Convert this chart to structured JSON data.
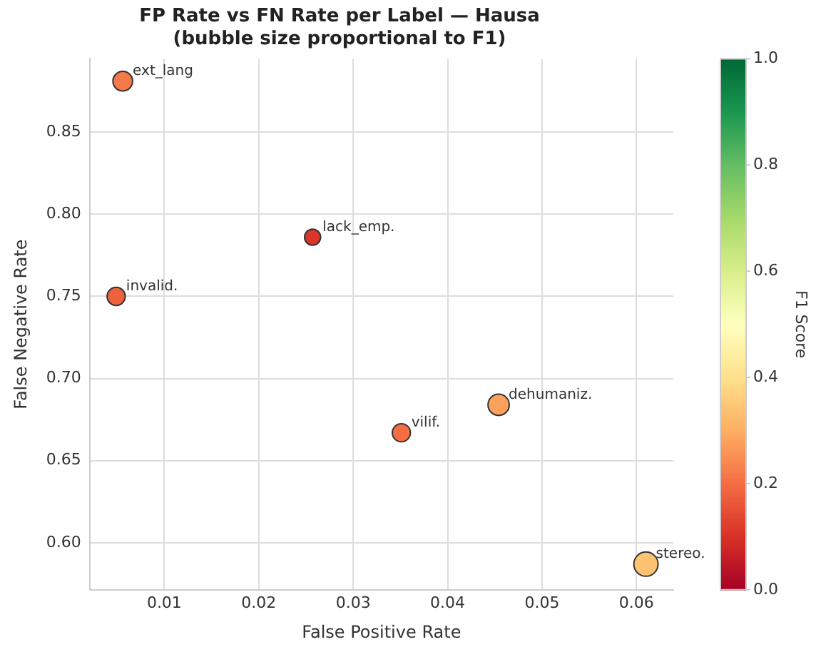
{
  "chart_data": {
    "type": "bubble",
    "title": "FP Rate vs FN Rate per Label — Hausa",
    "subtitle": "(bubble size proportional to F1)",
    "xlabel": "False Positive Rate",
    "ylabel": "False Negative Rate",
    "clabel": "F1 Score",
    "x": [
      0.0056,
      0.0257,
      0.0049,
      0.0454,
      0.0351,
      0.061
    ],
    "values": [
      0.881,
      0.786,
      0.75,
      0.684,
      0.667,
      0.587
    ],
    "sizes": [
      0.66,
      0.44,
      0.56,
      0.77,
      0.56,
      1
    ],
    "cvalues": [
      0.22,
      0.11,
      0.18,
      0.28,
      0.2,
      0.34
    ],
    "annotations": [
      {
        "text": "ext_lang",
        "x": 0.0056,
        "y": 0.881
      },
      {
        "text": "lack_emp.",
        "x": 0.0257,
        "y": 0.786
      },
      {
        "text": "invalid.",
        "x": 0.0049,
        "y": 0.75
      },
      {
        "text": "dehumaniz.",
        "x": 0.0454,
        "y": 0.684
      },
      {
        "text": "vilif.",
        "x": 0.0351,
        "y": 0.667
      },
      {
        "text": "stereo.",
        "x": 0.061,
        "y": 0.587
      }
    ],
    "xlim": [
      0.0021,
      0.0639
    ],
    "xticks": [
      0.01,
      0.02,
      0.03,
      0.04,
      0.05,
      0.06
    ],
    "ylim": [
      0.5714,
      0.8946
    ],
    "yticks": [
      {
        "value": 0.6,
        "label": "0.60"
      },
      0.65,
      {
        "value": 0.7,
        "label": "0.70"
      },
      0.75,
      {
        "value": 0.8,
        "label": "0.80"
      },
      0.85
    ],
    "clim": [
      0,
      1
    ],
    "cticks": [
      {
        "value": 0,
        "label": "0.0"
      },
      0.2,
      0.4,
      0.6,
      0.8,
      {
        "value": 1,
        "label": "1.0"
      }
    ],
    "grid": true,
    "legend": false
  }
}
